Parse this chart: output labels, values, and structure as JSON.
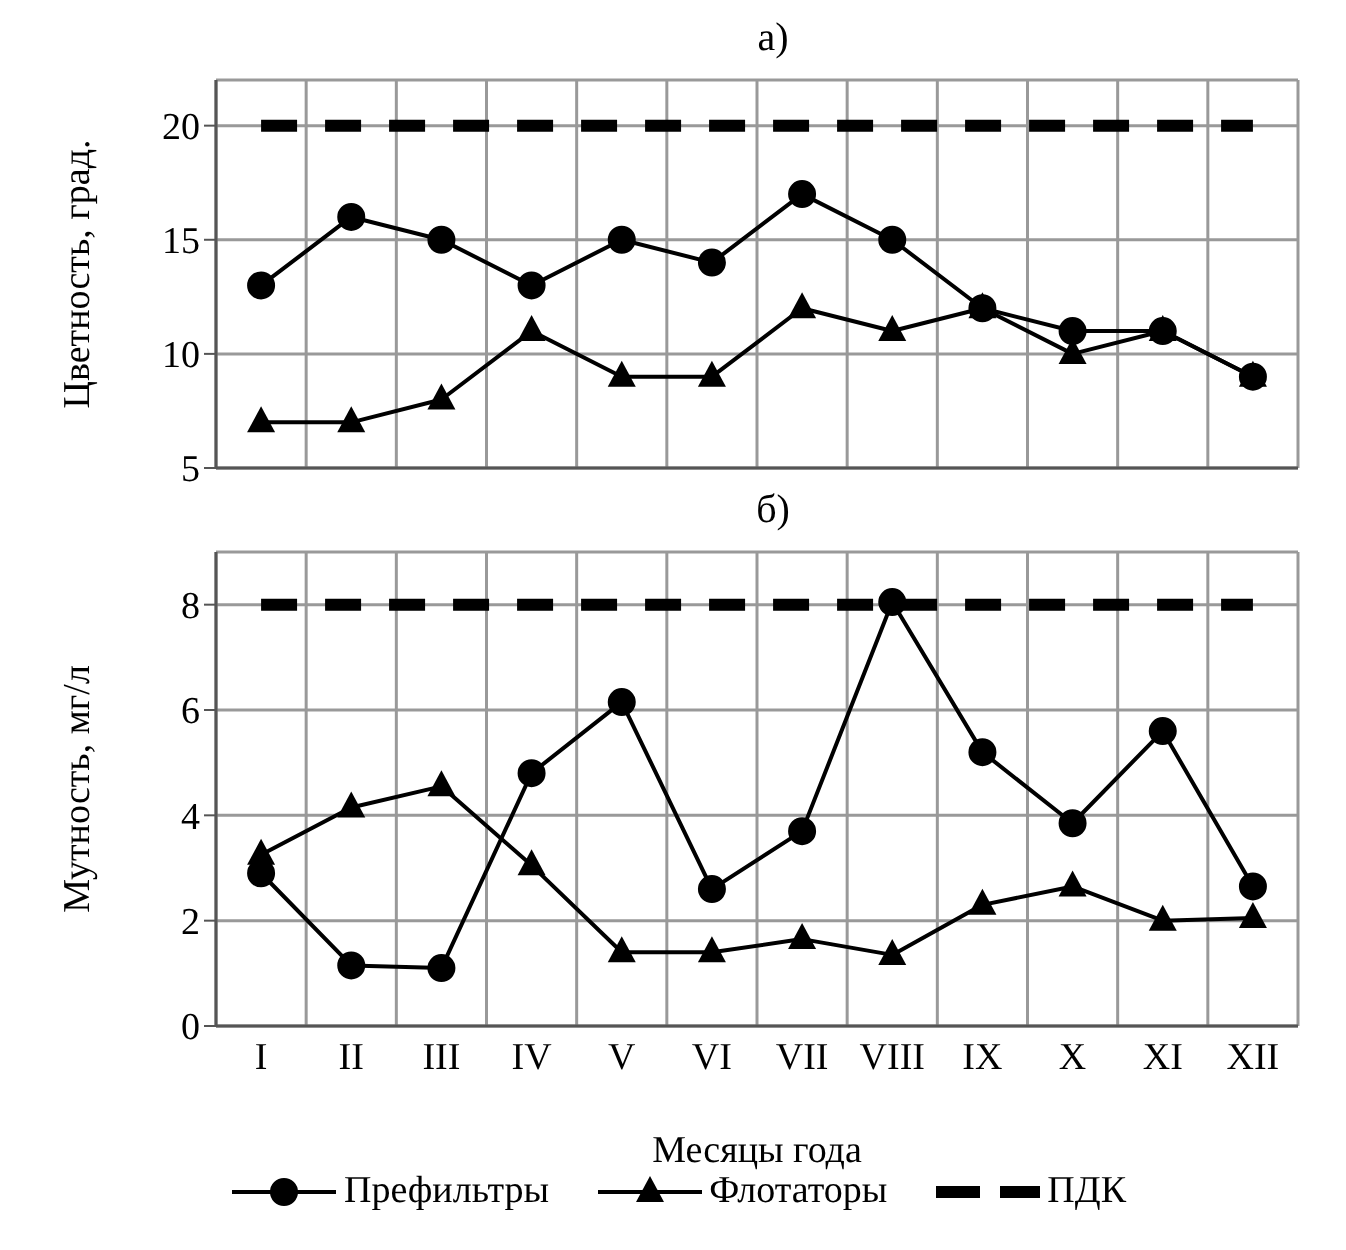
{
  "chart_data": [
    {
      "type": "line",
      "title": "а)",
      "ylabel": "Цветность, град.",
      "categories": [
        null,
        null,
        null,
        null,
        null,
        null,
        null,
        null,
        null,
        null,
        null,
        null
      ],
      "ylim": [
        5,
        22
      ],
      "yticks": [
        5,
        10,
        15,
        20
      ],
      "grid": true,
      "series": [
        {
          "color": "#000000",
          "marker": "circle",
          "values": [
            13,
            16,
            15,
            13,
            15,
            14,
            17,
            15,
            12,
            11,
            11,
            9
          ]
        },
        {
          "color": "#000000",
          "marker": "triangle",
          "values": [
            7,
            7,
            8,
            11,
            9,
            9,
            12,
            11,
            12,
            10,
            11,
            9
          ]
        },
        {
          "color": "#000000",
          "marker": "none",
          "line_style": "dashed",
          "values": [
            20,
            20,
            20,
            20,
            20,
            20,
            20,
            20,
            20,
            20,
            20,
            20
          ]
        }
      ]
    },
    {
      "type": "line",
      "title": "б)",
      "xlabel": "Месяцы года",
      "ylabel": "Мутность, мг/л",
      "categories": [
        "I",
        "II",
        "III",
        "IV",
        "V",
        "VI",
        "VII",
        "VIII",
        "IX",
        "X",
        "XI",
        "XII"
      ],
      "ylim": [
        0,
        9
      ],
      "yticks": [
        0,
        2,
        4,
        6,
        8
      ],
      "grid": true,
      "legend": "bottom",
      "series": [
        {
          "name": "Префильтры",
          "color": "#000000",
          "marker": "circle",
          "values": [
            2.9,
            1.15,
            1.1,
            4.8,
            6.15,
            2.6,
            3.7,
            8.05,
            5.2,
            3.85,
            5.6,
            2.65
          ]
        },
        {
          "name": "Флотаторы",
          "color": "#000000",
          "marker": "triangle",
          "values": [
            3.25,
            4.15,
            4.55,
            3.05,
            1.4,
            1.4,
            1.65,
            1.35,
            2.3,
            2.65,
            2.0,
            2.05
          ]
        },
        {
          "name": "ПДК",
          "color": "#000000",
          "marker": "none",
          "line_style": "dashed",
          "values": [
            8,
            8,
            8,
            8,
            8,
            8,
            8,
            8,
            8,
            8,
            8,
            8
          ]
        }
      ]
    }
  ]
}
